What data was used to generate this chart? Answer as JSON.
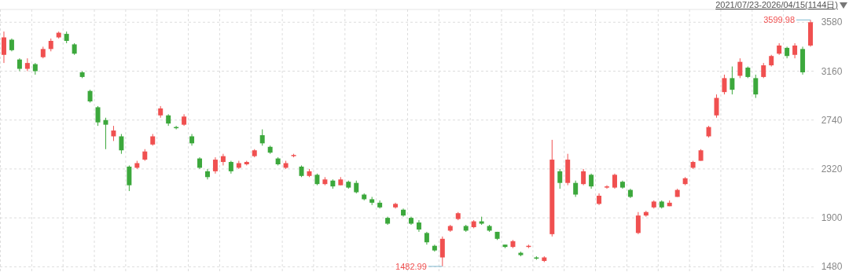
{
  "chart_data": {
    "type": "candlestick",
    "title": "2021/07/23-2026/04/15(1144日)",
    "categories": [
      null,
      null,
      null,
      null,
      null,
      null,
      null,
      null,
      null,
      null,
      null,
      null,
      null,
      null,
      null,
      null,
      null,
      null,
      null,
      null,
      null,
      null,
      null,
      null,
      null,
      null,
      null,
      null,
      null,
      null,
      null,
      null,
      null,
      null,
      null,
      null,
      null,
      null,
      null,
      null,
      null,
      null,
      null,
      null,
      null,
      null,
      null,
      null,
      null,
      null,
      null,
      null,
      null,
      null,
      null,
      null,
      null,
      null,
      null,
      null,
      null,
      null,
      null,
      null,
      null,
      null,
      null,
      null,
      null,
      null,
      null,
      null,
      null,
      null,
      null,
      null,
      null,
      null,
      null,
      null,
      null,
      null,
      null,
      null,
      null,
      null,
      null,
      null,
      null,
      null,
      null,
      null,
      null,
      null,
      null,
      null,
      null,
      null,
      null,
      null,
      null,
      null,
      null,
      null
    ],
    "ohlc": [
      [
        3300,
        3500,
        3230,
        3450
      ],
      [
        3430,
        3440,
        3330,
        3340
      ],
      [
        3260,
        3270,
        3160,
        3180
      ],
      [
        3180,
        3270,
        3160,
        3230
      ],
      [
        3220,
        3230,
        3130,
        3160
      ],
      [
        3280,
        3370,
        3270,
        3350
      ],
      [
        3350,
        3440,
        3330,
        3420
      ],
      [
        3450,
        3500,
        3440,
        3490
      ],
      [
        3480,
        3500,
        3400,
        3420
      ],
      [
        3390,
        3400,
        3300,
        3310
      ],
      [
        3150,
        3160,
        3100,
        3110
      ],
      [
        2990,
        3000,
        2890,
        2900
      ],
      [
        2850,
        2860,
        2690,
        2720
      ],
      [
        2740,
        2760,
        2490,
        2700
      ],
      [
        2600,
        2690,
        2560,
        2650
      ],
      [
        2600,
        2620,
        2450,
        2480
      ],
      [
        2340,
        2350,
        2130,
        2180
      ],
      [
        2330,
        2390,
        2320,
        2370
      ],
      [
        2400,
        2490,
        2390,
        2470
      ],
      [
        2530,
        2620,
        2520,
        2600
      ],
      [
        2780,
        2860,
        2760,
        2840
      ],
      [
        2780,
        2790,
        2690,
        2710
      ],
      [
        2680,
        2690,
        2660,
        2670
      ],
      [
        2700,
        2790,
        2690,
        2770
      ],
      [
        2600,
        2620,
        2520,
        2540
      ],
      [
        2410,
        2420,
        2320,
        2330
      ],
      [
        2300,
        2320,
        2230,
        2250
      ],
      [
        2300,
        2420,
        2280,
        2400
      ],
      [
        2380,
        2450,
        2350,
        2430
      ],
      [
        2380,
        2390,
        2280,
        2300
      ],
      [
        2330,
        2390,
        2320,
        2370
      ],
      [
        2360,
        2390,
        2350,
        2380
      ],
      [
        2430,
        2490,
        2420,
        2480
      ],
      [
        2610,
        2660,
        2520,
        2540
      ],
      [
        2510,
        2520,
        2450,
        2460
      ],
      [
        2410,
        2420,
        2350,
        2360
      ],
      [
        2330,
        2390,
        2320,
        2370
      ],
      [
        2430,
        2450,
        2420,
        2440
      ],
      [
        2340,
        2350,
        2250,
        2260
      ],
      [
        2260,
        2320,
        2250,
        2300
      ],
      [
        2270,
        2280,
        2180,
        2190
      ],
      [
        2190,
        2250,
        2180,
        2230
      ],
      [
        2220,
        2230,
        2150,
        2170
      ],
      [
        2180,
        2250,
        2180,
        2230
      ],
      [
        2210,
        2220,
        2150,
        2160
      ],
      [
        2200,
        2220,
        2110,
        2120
      ],
      [
        2100,
        2110,
        2050,
        2060
      ],
      [
        2060,
        2080,
        2010,
        2030
      ],
      [
        2030,
        2050,
        1980,
        1990
      ],
      [
        1900,
        1910,
        1840,
        1850
      ],
      [
        1990,
        2030,
        1980,
        2020
      ],
      [
        1970,
        1980,
        1910,
        1920
      ],
      [
        1900,
        1910,
        1840,
        1850
      ],
      [
        1860,
        1880,
        1780,
        1800
      ],
      [
        1770,
        1780,
        1670,
        1690
      ],
      [
        1660,
        1670,
        1610,
        1620
      ],
      [
        1560,
        1740,
        1482.99,
        1720
      ],
      [
        1790,
        1840,
        1780,
        1830
      ],
      [
        1890,
        1950,
        1880,
        1940
      ],
      [
        1830,
        1840,
        1780,
        1790
      ],
      [
        1820,
        1880,
        1810,
        1870
      ],
      [
        1870,
        1910,
        1840,
        1850
      ],
      [
        1830,
        1840,
        1780,
        1790
      ],
      [
        1780,
        1780,
        1710,
        1720
      ],
      [
        1670,
        1670,
        1640,
        1650
      ],
      [
        1650,
        1710,
        1640,
        1700
      ],
      [
        1600,
        1610,
        1570,
        1580
      ],
      [
        1650,
        1670,
        1640,
        1660
      ],
      [
        1560,
        1570,
        1540,
        1550
      ],
      [
        1530,
        1570,
        1520,
        1560
      ],
      [
        1760,
        2570,
        1740,
        2400
      ],
      [
        2300,
        2320,
        2150,
        2200
      ],
      [
        2200,
        2450,
        2180,
        2400
      ],
      [
        2200,
        2220,
        2080,
        2100
      ],
      [
        2190,
        2320,
        2180,
        2300
      ],
      [
        2270,
        2280,
        2150,
        2170
      ],
      [
        2020,
        2110,
        2010,
        2090
      ],
      [
        2160,
        2180,
        2150,
        2170
      ],
      [
        2160,
        2280,
        2150,
        2270
      ],
      [
        2210,
        2220,
        2150,
        2160
      ],
      [
        2140,
        2150,
        2070,
        2080
      ],
      [
        1770,
        1950,
        1760,
        1920
      ],
      [
        1920,
        1960,
        1910,
        1950
      ],
      [
        1990,
        2050,
        1980,
        2040
      ],
      [
        2040,
        2050,
        1980,
        1990
      ],
      [
        2000,
        2050,
        2000,
        2030
      ],
      [
        2080,
        2150,
        2080,
        2140
      ],
      [
        2190,
        2250,
        2180,
        2240
      ],
      [
        2330,
        2390,
        2320,
        2380
      ],
      [
        2390,
        2490,
        2390,
        2480
      ],
      [
        2600,
        2690,
        2590,
        2680
      ],
      [
        2780,
        2960,
        2760,
        2930
      ],
      [
        2980,
        3130,
        2960,
        3100
      ],
      [
        3100,
        3200,
        2960,
        3000
      ],
      [
        3120,
        3270,
        3100,
        3240
      ],
      [
        3190,
        3200,
        3100,
        3110
      ],
      [
        3100,
        3130,
        2930,
        2960
      ],
      [
        3110,
        3230,
        3100,
        3210
      ],
      [
        3210,
        3300,
        3200,
        3290
      ],
      [
        3310,
        3400,
        3300,
        3380
      ],
      [
        3360,
        3370,
        3270,
        3290
      ],
      [
        3300,
        3400,
        3270,
        3380
      ],
      [
        3350,
        3370,
        3130,
        3150
      ],
      [
        3380,
        3599.98,
        3370,
        3580
      ]
    ],
    "colors": [
      "#f05050",
      "#3ca83c",
      "#3ca83c",
      "#f05050",
      "#3ca83c",
      "#f05050",
      "#f05050",
      "#f05050",
      "#3ca83c",
      "#3ca83c",
      "#3ca83c",
      "#3ca83c",
      "#3ca83c",
      "#3ca83c",
      "#f05050",
      "#3ca83c",
      "#3ca83c",
      "#f05050",
      "#f05050",
      "#f05050",
      "#f05050",
      "#3ca83c",
      "#3ca83c",
      "#f05050",
      "#3ca83c",
      "#3ca83c",
      "#3ca83c",
      "#f05050",
      "#f05050",
      "#3ca83c",
      "#f05050",
      "#f05050",
      "#f05050",
      "#3ca83c",
      "#3ca83c",
      "#3ca83c",
      "#f05050",
      "#f05050",
      "#3ca83c",
      "#f05050",
      "#3ca83c",
      "#f05050",
      "#3ca83c",
      "#f05050",
      "#3ca83c",
      "#3ca83c",
      "#3ca83c",
      "#3ca83c",
      "#3ca83c",
      "#3ca83c",
      "#f05050",
      "#3ca83c",
      "#3ca83c",
      "#3ca83c",
      "#3ca83c",
      "#3ca83c",
      "#f05050",
      "#f05050",
      "#f05050",
      "#3ca83c",
      "#f05050",
      "#3ca83c",
      "#3ca83c",
      "#3ca83c",
      "#3ca83c",
      "#f05050",
      "#3ca83c",
      "#f05050",
      "#3ca83c",
      "#f05050",
      "#f05050",
      "#3ca83c",
      "#f05050",
      "#3ca83c",
      "#f05050",
      "#3ca83c",
      "#f05050",
      "#f05050",
      "#f05050",
      "#3ca83c",
      "#3ca83c",
      "#f05050",
      "#f05050",
      "#f05050",
      "#3ca83c",
      "#f05050",
      "#f05050",
      "#f05050",
      "#f05050",
      "#f05050",
      "#f05050",
      "#f05050",
      "#f05050",
      "#3ca83c",
      "#f05050",
      "#3ca83c",
      "#3ca83c",
      "#f05050",
      "#f05050",
      "#f05050",
      "#3ca83c",
      "#f05050",
      "#3ca83c",
      "#f05050"
    ],
    "ylim": [
      1435,
      3690
    ],
    "yticks": [
      1480,
      1900,
      2320,
      2740,
      3160,
      3580
    ],
    "grid": true,
    "annotations": [
      "3599.98",
      "1482.99"
    ]
  }
}
